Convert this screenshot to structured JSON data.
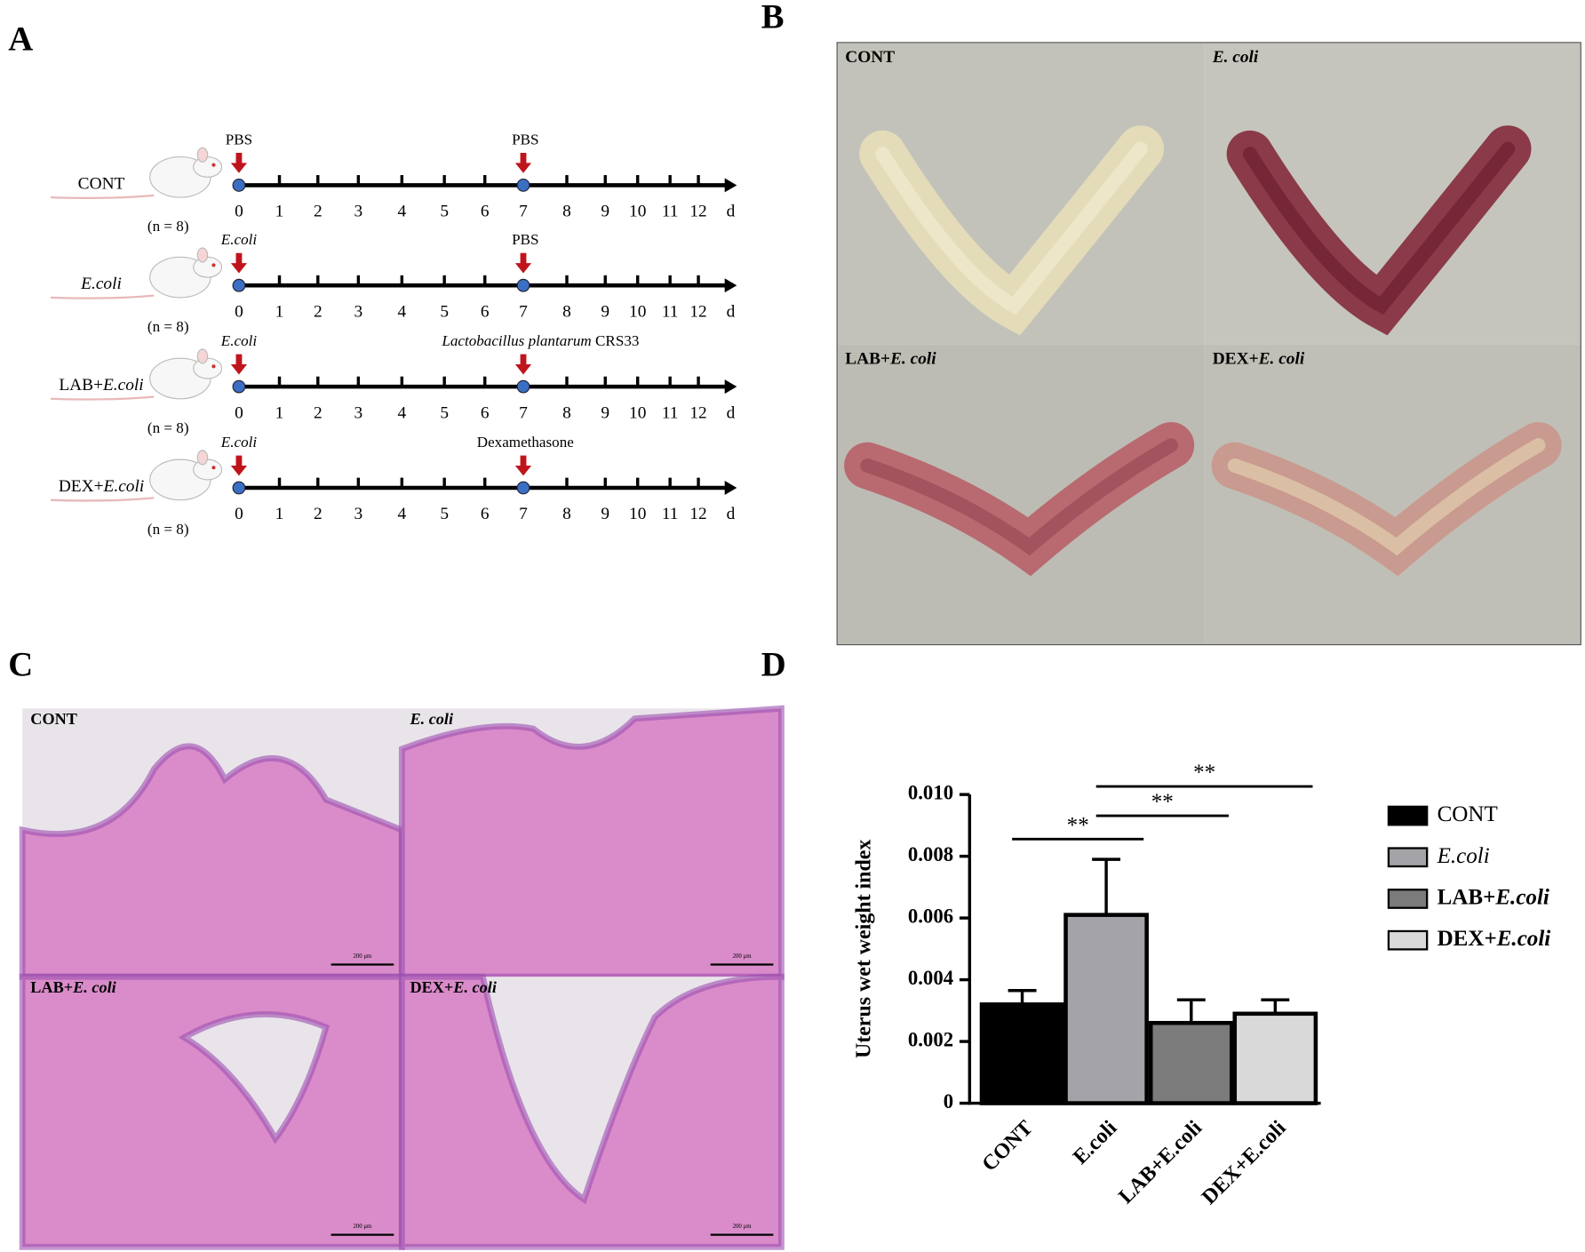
{
  "panels": {
    "A": {
      "letter": "A",
      "days": [
        0,
        1,
        2,
        3,
        4,
        5,
        6,
        7,
        8,
        9,
        10,
        11,
        12
      ],
      "unit": "d",
      "groups": [
        {
          "label": "CONT",
          "n": "(n = 8)",
          "day0": "PBS",
          "day7": "PBS"
        },
        {
          "label_italic": "E.coli",
          "n": "(n = 8)",
          "day0_italic": "E.coli",
          "day7": "PBS"
        },
        {
          "label": "LAB+",
          "label_italic": "E.coli",
          "n": "(n = 8)",
          "day0_italic": "E.coli",
          "day7_italic": "Lactobacillus plantarum",
          "day7": " CRS33"
        },
        {
          "label": "DEX+",
          "label_italic": "E.coli",
          "n": "(n = 8)",
          "day0_italic": "E.coli",
          "day7": "Dexamethasone"
        }
      ]
    },
    "B": {
      "letter": "B",
      "photos": [
        {
          "label": "CONT"
        },
        {
          "label_italic": "E. coli"
        },
        {
          "label": "LAB+",
          "label_italic": "E. coli"
        },
        {
          "label": "DEX+",
          "label_italic": "E. coli"
        }
      ]
    },
    "C": {
      "letter": "C",
      "scale_bar": "200 μm",
      "photos": [
        {
          "label": "CONT"
        },
        {
          "label_italic": "E. coli"
        },
        {
          "label": "LAB+",
          "label_italic": "E. coli"
        },
        {
          "label": "DEX+",
          "label_italic": "E. coli"
        }
      ]
    },
    "D": {
      "letter": "D"
    }
  },
  "chart_data": {
    "type": "bar",
    "y_label": "Uterus wet weight index",
    "categories": [
      "CONT",
      "E.coli",
      "LAB+E.coli",
      "DEX+E.coli"
    ],
    "values": [
      0.0032,
      0.0061,
      0.0026,
      0.0029
    ],
    "errors": [
      0.00045,
      0.0018,
      0.00075,
      0.00045
    ],
    "colors": [
      "#000000",
      "#a3a3a8",
      "#7b7b7b",
      "#d9d9d9"
    ],
    "ylim": [
      0,
      0.01
    ],
    "yticks": [
      0,
      0.002,
      0.004,
      0.006,
      0.008,
      {
        "value": 0.01,
        "label": "0.010"
      }
    ],
    "annotations": [
      "**",
      "**",
      "**"
    ],
    "legend": {
      "position": "right",
      "labels": [
        {
          "text": "CONT"
        },
        {
          "italic": "E.coli"
        },
        {
          "text": "LAB+",
          "italic": "E.coli"
        },
        {
          "text": "DEX+",
          "italic": "E.coli"
        }
      ]
    }
  }
}
